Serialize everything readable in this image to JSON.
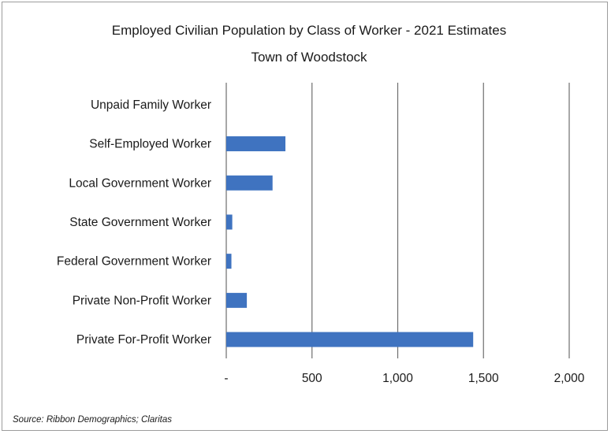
{
  "chart_data": {
    "type": "bar",
    "orientation": "horizontal",
    "title": "Employed Civilian Population by Class of Worker - 2021 Estimates",
    "subtitle": "Town of Woodstock",
    "categories": [
      "Unpaid Family Worker",
      "Self-Employed Worker",
      "Local Government Worker",
      "State Government Worker",
      "Federal Government Worker",
      "Private Non-Profit Worker",
      "Private For-Profit Worker"
    ],
    "values": [
      0,
      345,
      270,
      35,
      30,
      120,
      1440
    ],
    "xlim": [
      0,
      2000
    ],
    "xticks": [
      0,
      500,
      1000,
      1500,
      2000
    ],
    "xtick_labels": [
      "-",
      "500",
      "1,000",
      "1,500",
      "2,000"
    ],
    "grid": "vertical",
    "legend": "none",
    "bar_color": "#3f73c0",
    "source": "Source: Ribbon Demographics; Claritas"
  }
}
